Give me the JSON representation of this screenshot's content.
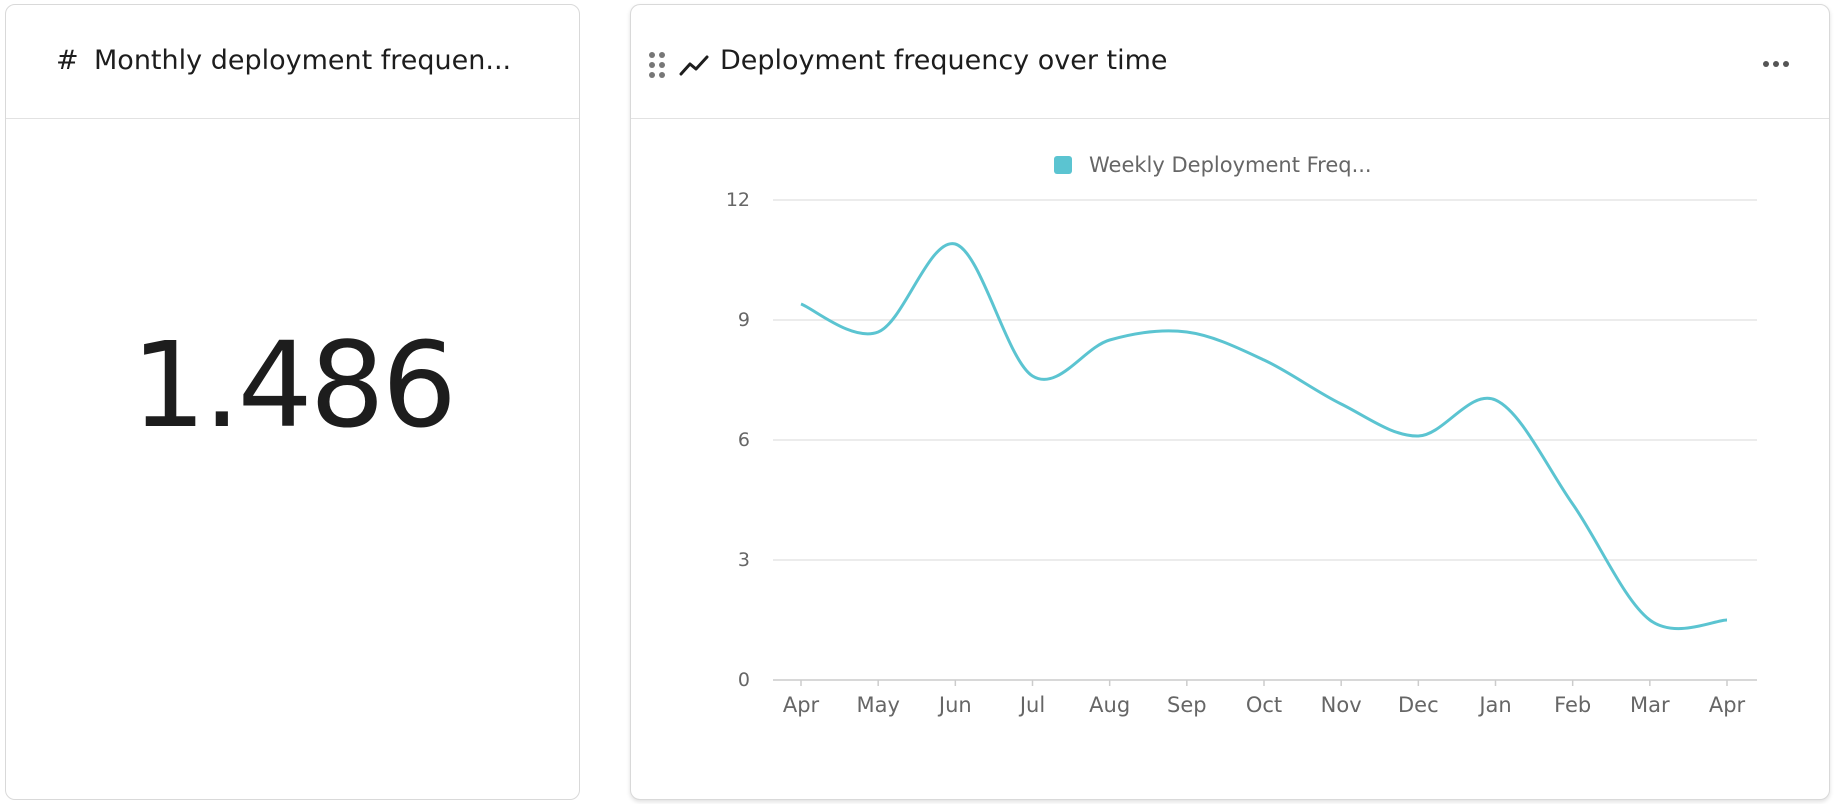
{
  "cards": [
    {
      "title": "Monthly deployment frequen...",
      "value": "1.486"
    }
  ],
  "chart_data": {
    "type": "line",
    "title": "Deployment frequency over time",
    "categories": [
      "Apr",
      "May",
      "Jun",
      "Jul",
      "Aug",
      "Sep",
      "Oct",
      "Nov",
      "Dec",
      "Jan",
      "Feb",
      "Mar",
      "Apr"
    ],
    "series": [
      {
        "name": "Weekly Deployment Freq...",
        "color": "#5bc4d1",
        "values": [
          9.4,
          8.7,
          10.9,
          7.6,
          8.5,
          8.7,
          8.0,
          6.9,
          6.1,
          7.0,
          4.4,
          1.5,
          1.5
        ]
      }
    ],
    "ylim": [
      0,
      12
    ],
    "yticks": [
      0,
      3,
      6,
      9,
      12
    ],
    "grid": true,
    "legend": "top"
  }
}
